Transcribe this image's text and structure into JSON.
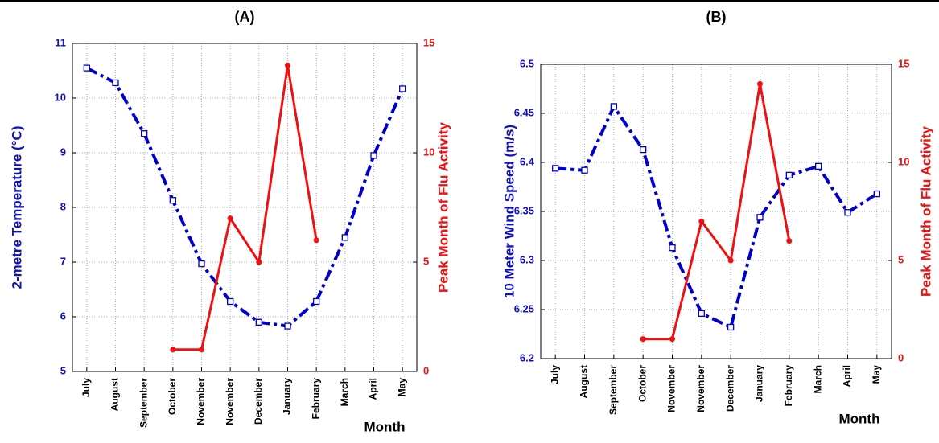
{
  "chart_data": [
    {
      "type": "line",
      "title": "(A)",
      "x_label": "Month",
      "y_label": "2-metre Temperature (°C)",
      "y2_label": "Peak Month of Flu Activity",
      "categories": [
        "July",
        "August",
        "September",
        "October",
        "November",
        "November",
        "December",
        "January",
        "February",
        "March",
        "April",
        "May"
      ],
      "ylim": [
        5,
        11
      ],
      "yticks": [
        5,
        6,
        7,
        8,
        9,
        10,
        11
      ],
      "y2lim": [
        0,
        15
      ],
      "y2ticks": [
        0,
        5,
        10,
        15
      ],
      "grid": true,
      "series": [
        {
          "color": "#0000cc",
          "values": [
            10.55,
            10.28,
            9.35,
            8.13,
            6.97,
            6.28,
            5.9,
            5.83,
            6.28,
            7.45,
            8.95,
            10.17
          ]
        },
        {
          "color": "#ee1111",
          "axis": "y2",
          "values": [
            null,
            null,
            null,
            1,
            1,
            7,
            5,
            14,
            6,
            null,
            null,
            null
          ]
        }
      ]
    },
    {
      "type": "line",
      "title": "(B)",
      "x_label": "Month",
      "y_label": "10 Meter Wind Speed (m/s)",
      "y2_label": "Peak Month of Flu Activity",
      "categories": [
        "July",
        "August",
        "September",
        "October",
        "November",
        "November",
        "December",
        "January",
        "February",
        "March",
        "April",
        "May"
      ],
      "ylim": [
        6.2,
        6.5
      ],
      "yticks": [
        6.2,
        6.25,
        6.3,
        6.35,
        6.4,
        6.45,
        6.5
      ],
      "y2lim": [
        0,
        15
      ],
      "y2ticks": [
        0,
        5,
        10,
        15
      ],
      "grid": true,
      "series": [
        {
          "color": "#0000cc",
          "values": [
            6.394,
            6.392,
            6.457,
            6.413,
            6.313,
            6.246,
            6.232,
            6.344,
            6.387,
            6.396,
            6.349,
            6.368
          ]
        },
        {
          "color": "#ee1111",
          "axis": "y2",
          "values": [
            null,
            null,
            null,
            1,
            1,
            7,
            5,
            14,
            6,
            null,
            null,
            null
          ]
        }
      ]
    }
  ]
}
